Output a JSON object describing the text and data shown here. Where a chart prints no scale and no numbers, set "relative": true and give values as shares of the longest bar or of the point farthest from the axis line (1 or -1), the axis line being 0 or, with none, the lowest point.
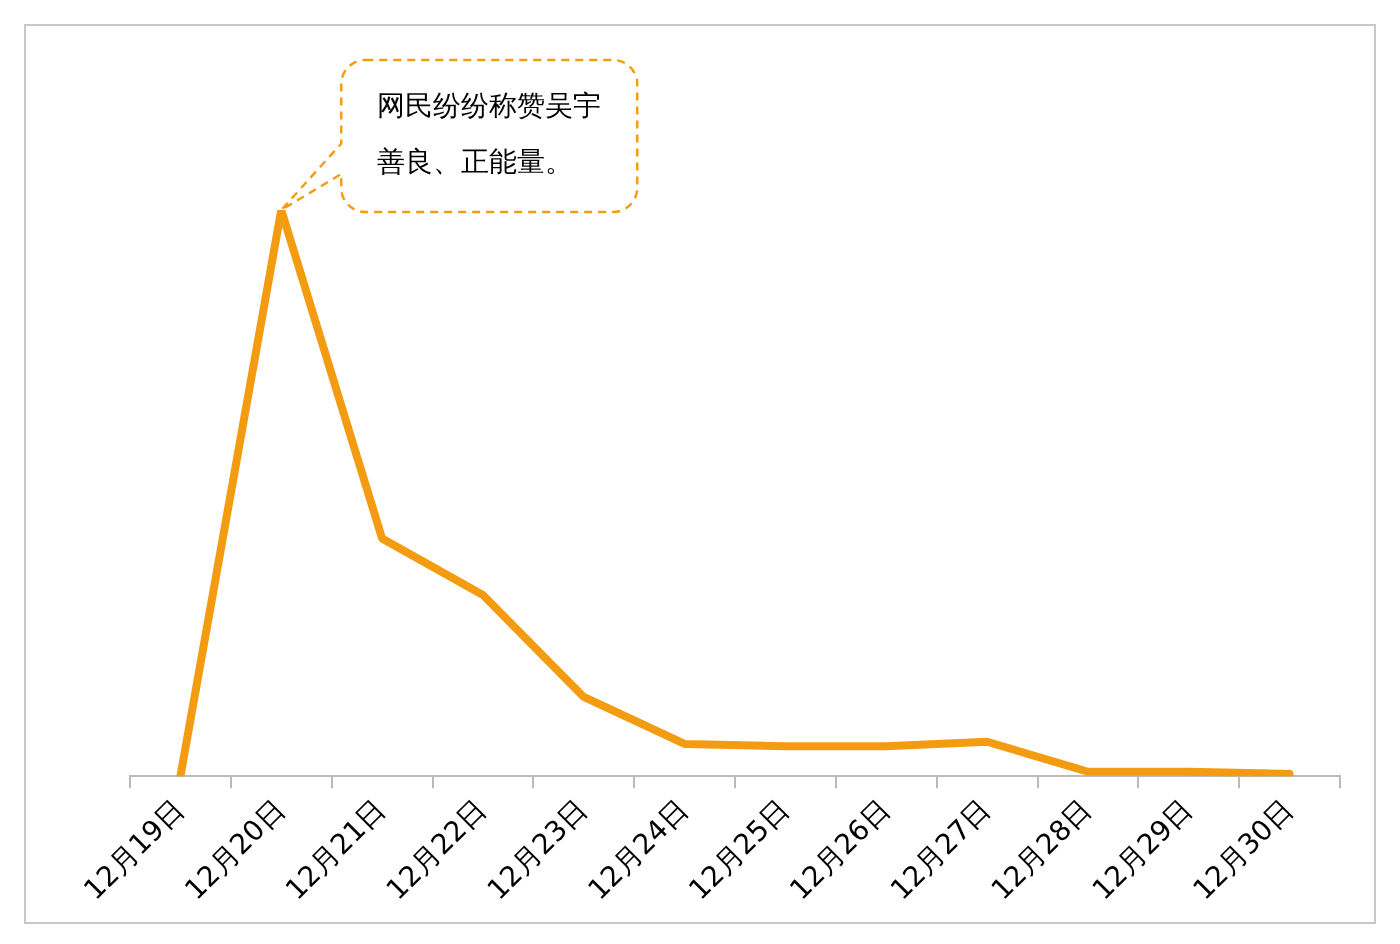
{
  "chart_data": {
    "type": "line",
    "relative": true,
    "categories": [
      "12月19日",
      "12月20日",
      "12月21日",
      "12月22日",
      "12月23日",
      "12月24日",
      "12月25日",
      "12月26日",
      "12月27日",
      "12月28日",
      "12月29日",
      "12月30日"
    ],
    "series": [
      {
        "color": "#f39c12",
        "values": [
          0,
          1,
          0.42,
          0.32,
          0.14,
          0.057,
          0.053,
          0.053,
          0.061,
          0.008,
          0.008,
          0.004
        ]
      }
    ],
    "annotations": [
      "网民纷纷称赞吴宇善良、正能量。"
    ],
    "grid": false,
    "legend": false,
    "marker": "none",
    "line_style": "solid"
  }
}
